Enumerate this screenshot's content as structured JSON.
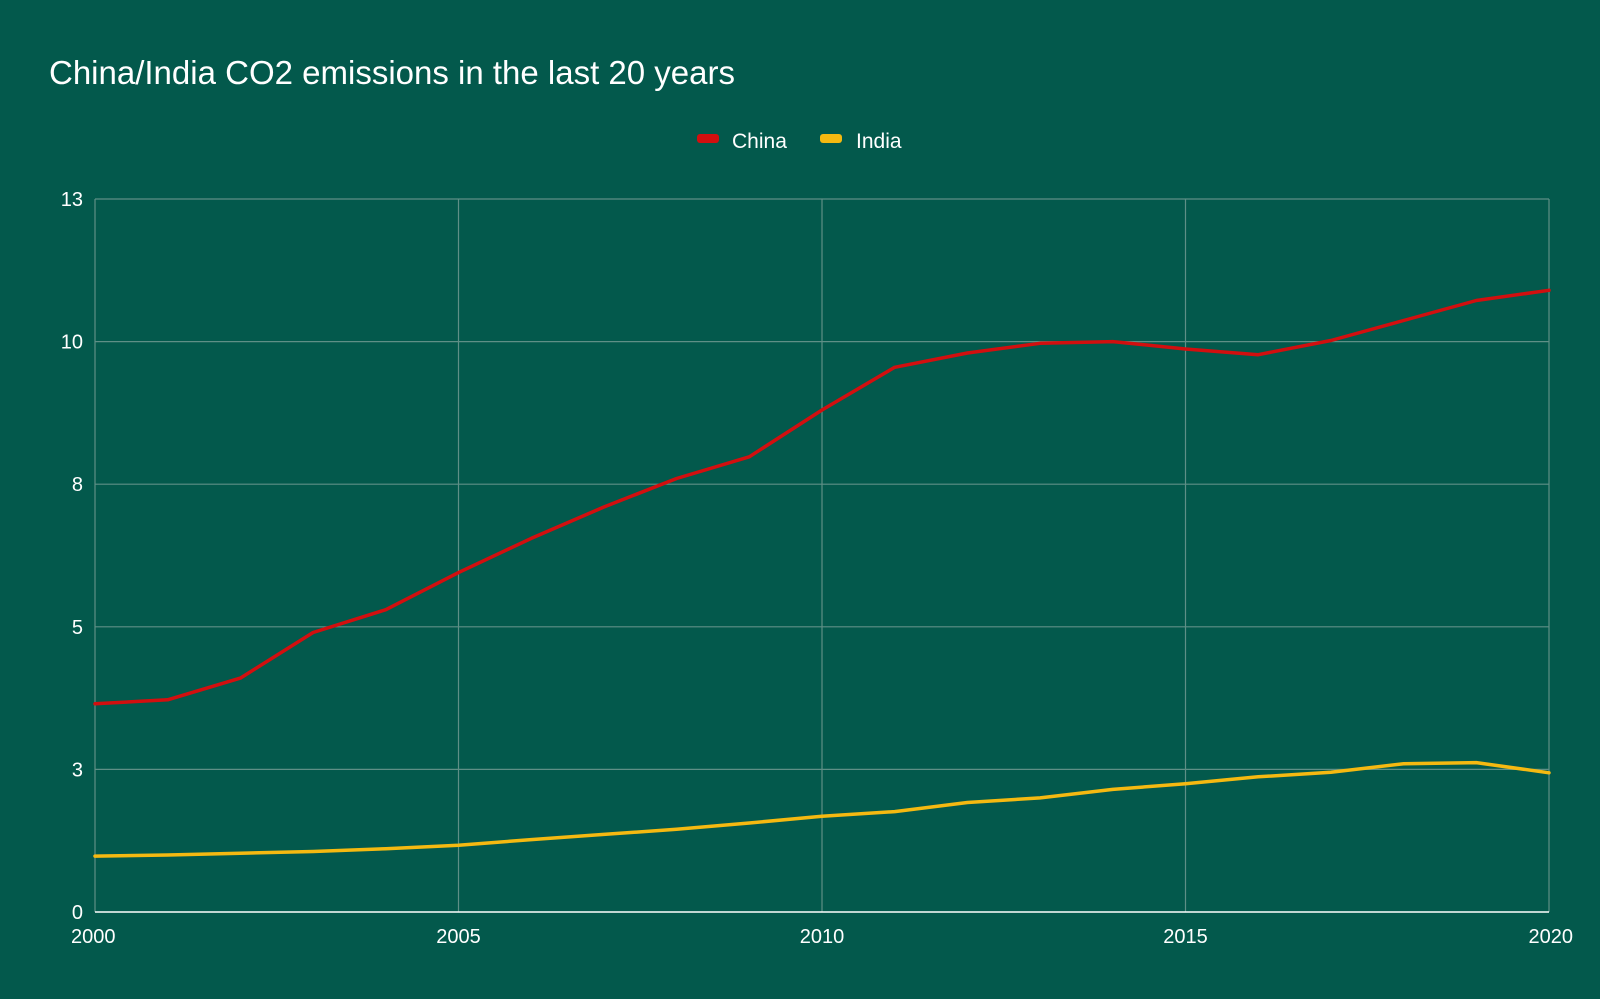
{
  "chart_data": {
    "type": "line",
    "title": "China/India CO2 emissions in the last 20 years",
    "xlabel": "",
    "ylabel": "",
    "xlim": [
      2000,
      2020
    ],
    "ylim": [
      0,
      12.5
    ],
    "legend_position": "top-center",
    "grid": true,
    "x": [
      2000,
      2001,
      2002,
      2003,
      2004,
      2005,
      2006,
      2007,
      2008,
      2009,
      2010,
      2011,
      2012,
      2013,
      2014,
      2015,
      2016,
      2017,
      2018,
      2019,
      2020
    ],
    "x_ticks": [
      {
        "value": 2000,
        "label": "2000"
      },
      {
        "value": 2005,
        "label": "2005"
      },
      {
        "value": 2010,
        "label": "2010"
      },
      {
        "value": 2015,
        "label": "2015"
      },
      {
        "value": 2020,
        "label": "2020"
      }
    ],
    "y_ticks": [
      {
        "value": 0,
        "label": "0"
      },
      {
        "value": 2.5,
        "label": "3"
      },
      {
        "value": 5,
        "label": "5"
      },
      {
        "value": 7.5,
        "label": "8"
      },
      {
        "value": 10,
        "label": "10"
      },
      {
        "value": 12.5,
        "label": "13"
      }
    ],
    "series": [
      {
        "name": "China",
        "color": "#d20f0f",
        "values": [
          3.65,
          3.72,
          4.1,
          4.9,
          5.3,
          5.95,
          6.55,
          7.1,
          7.6,
          7.98,
          8.8,
          9.55,
          9.8,
          9.97,
          10.0,
          9.87,
          9.77,
          10.02,
          10.37,
          10.72,
          10.9
        ]
      },
      {
        "name": "India",
        "color": "#f5b911",
        "values": [
          0.98,
          1.0,
          1.03,
          1.06,
          1.11,
          1.17,
          1.27,
          1.36,
          1.45,
          1.56,
          1.68,
          1.76,
          1.92,
          2.0,
          2.15,
          2.25,
          2.37,
          2.45,
          2.6,
          2.62,
          2.44
        ]
      }
    ]
  }
}
